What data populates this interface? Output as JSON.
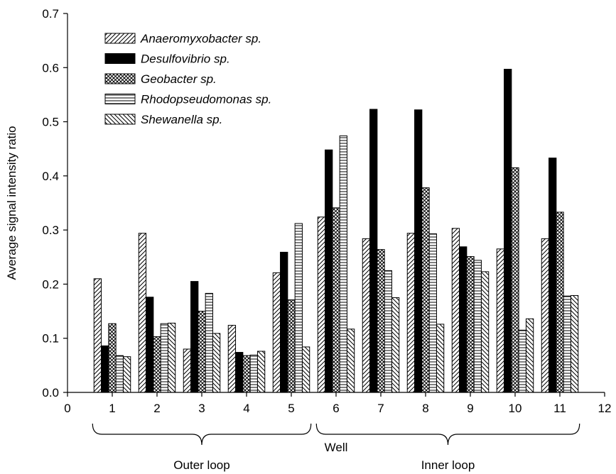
{
  "chart_data": {
    "type": "bar",
    "title": "",
    "xlabel": "Well",
    "ylabel": "Average signal intensity ratio",
    "xlim": [
      0,
      12
    ],
    "ylim": [
      0,
      0.7
    ],
    "x_ticks": [
      "0",
      "1",
      "2",
      "3",
      "4",
      "5",
      "6",
      "7",
      "8",
      "9",
      "10",
      "11",
      "12"
    ],
    "y_ticks": [
      "0.0",
      "0.1",
      "0.2",
      "0.3",
      "0.4",
      "0.5",
      "0.6",
      "0.7"
    ],
    "categories": [
      1,
      2,
      3,
      4,
      5,
      6,
      7,
      8,
      9,
      10,
      11
    ],
    "series": [
      {
        "name": "Anaeromyxobacter sp.",
        "pattern": "diagonal-up",
        "values": [
          0.21,
          0.294,
          0.08,
          0.124,
          0.221,
          0.324,
          0.284,
          0.294,
          0.303,
          0.265,
          0.284
        ]
      },
      {
        "name": "Desulfovibrio sp.",
        "pattern": "solid-black",
        "values": [
          0.086,
          0.176,
          0.205,
          0.074,
          0.259,
          0.448,
          0.523,
          0.522,
          0.269,
          0.597,
          0.433
        ]
      },
      {
        "name": "Geobacter sp.",
        "pattern": "crosshatch",
        "values": [
          0.127,
          0.103,
          0.15,
          0.068,
          0.171,
          0.341,
          0.264,
          0.378,
          0.251,
          0.415,
          0.333
        ]
      },
      {
        "name": "Rhodopseudomonas sp.",
        "pattern": "horizontal",
        "values": [
          0.068,
          0.127,
          0.183,
          0.069,
          0.312,
          0.474,
          0.225,
          0.293,
          0.244,
          0.115,
          0.178
        ]
      },
      {
        "name": "Shewanella sp.",
        "pattern": "diagonal-down",
        "values": [
          0.066,
          0.128,
          0.109,
          0.076,
          0.084,
          0.117,
          0.175,
          0.126,
          0.223,
          0.136,
          0.179
        ]
      }
    ],
    "legend_position": "top-left",
    "grid": false,
    "groups": [
      {
        "label": "Outer loop",
        "from": 1,
        "to": 5
      },
      {
        "label": "Inner loop",
        "from": 6,
        "to": 11
      }
    ]
  }
}
